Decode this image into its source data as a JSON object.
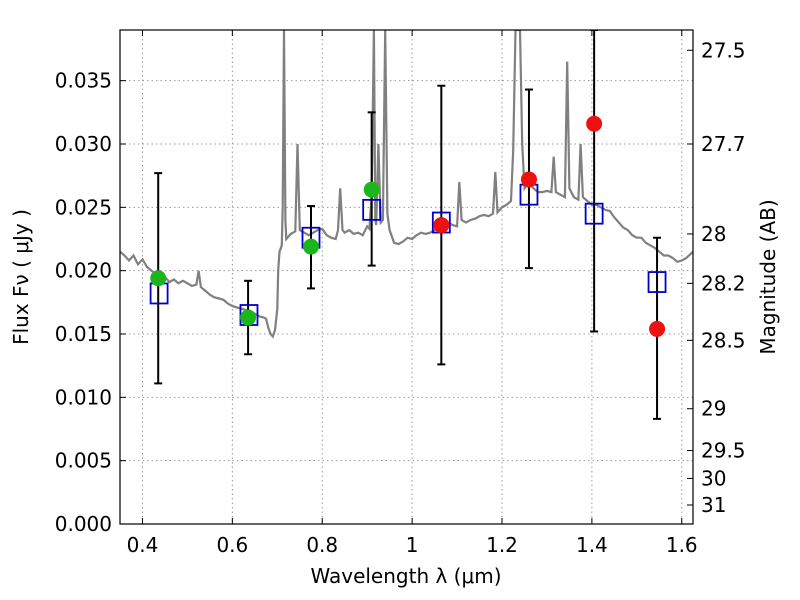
{
  "chart_data": {
    "type": "scatter",
    "xlabel": "Wavelength  λ (μm)",
    "ylabel": "Flux  Fν  ( μJy )",
    "ylabel_right": "Magnitude (AB)",
    "xlim": [
      0.35,
      1.625
    ],
    "ylim": [
      0.0,
      0.039
    ],
    "grid": true,
    "x_ticks": [
      0.4,
      0.6,
      0.8,
      1.0,
      1.2,
      1.4,
      1.6
    ],
    "x_tick_labels": [
      "0.4",
      "0.6",
      "0.8",
      "1",
      "1.2",
      "1.4",
      "1.6"
    ],
    "y_ticks": [
      0.0,
      0.005,
      0.01,
      0.015,
      0.02,
      0.025,
      0.03,
      0.035
    ],
    "y_tick_labels": [
      "0.000",
      "0.005",
      "0.010",
      "0.015",
      "0.020",
      "0.025",
      "0.030",
      "0.035"
    ],
    "right_ticks": [
      {
        "flux": 0.0374,
        "label": "27.5"
      },
      {
        "flux": 0.03,
        "label": "27.7"
      },
      {
        "flux": 0.0229,
        "label": "28"
      },
      {
        "flux": 0.019,
        "label": "28.2"
      },
      {
        "flux": 0.0145,
        "label": "28.5"
      },
      {
        "flux": 0.0091,
        "label": "29"
      },
      {
        "flux": 0.0058,
        "label": "29.5"
      },
      {
        "flux": 0.0036,
        "label": "30"
      },
      {
        "flux": 0.0015,
        "label": "31"
      }
    ],
    "colors": {
      "spectrum": "#808080",
      "green": "#1cb51c",
      "red": "#ee1111",
      "model_box": "#0000cc",
      "errorbar": "#000000",
      "grid": "#9a9a9a"
    },
    "observed_points": [
      {
        "x": 0.435,
        "y": 0.0194,
        "err_lo": 0.0111,
        "err_hi": 0.0277,
        "color": "green"
      },
      {
        "x": 0.635,
        "y": 0.0163,
        "err_lo": 0.0134,
        "err_hi": 0.0192,
        "color": "green"
      },
      {
        "x": 0.775,
        "y": 0.0219,
        "err_lo": 0.0186,
        "err_hi": 0.0251,
        "color": "green"
      },
      {
        "x": 0.91,
        "y": 0.0264,
        "err_lo": 0.0204,
        "err_hi": 0.0325,
        "color": "green"
      },
      {
        "x": 1.065,
        "y": 0.0236,
        "err_lo": 0.0126,
        "err_hi": 0.0346,
        "color": "red"
      },
      {
        "x": 1.26,
        "y": 0.0272,
        "err_lo": 0.0202,
        "err_hi": 0.0343,
        "color": "red"
      },
      {
        "x": 1.405,
        "y": 0.0316,
        "err_lo": 0.0152,
        "err_hi": 0.039,
        "color": "red"
      },
      {
        "x": 1.545,
        "y": 0.0154,
        "err_lo": 0.0083,
        "err_hi": 0.0226,
        "color": "red"
      }
    ],
    "model_points": [
      {
        "x": 0.437,
        "y": 0.0182
      },
      {
        "x": 0.637,
        "y": 0.0165
      },
      {
        "x": 0.775,
        "y": 0.0226
      },
      {
        "x": 0.91,
        "y": 0.0248
      },
      {
        "x": 1.065,
        "y": 0.0238
      },
      {
        "x": 1.26,
        "y": 0.026
      },
      {
        "x": 1.405,
        "y": 0.0245
      },
      {
        "x": 1.545,
        "y": 0.0191
      }
    ],
    "spectrum": [
      [
        0.35,
        0.0215
      ],
      [
        0.36,
        0.0212
      ],
      [
        0.37,
        0.0208
      ],
      [
        0.38,
        0.0212
      ],
      [
        0.39,
        0.0205
      ],
      [
        0.4,
        0.0209
      ],
      [
        0.41,
        0.0203
      ],
      [
        0.42,
        0.02
      ],
      [
        0.43,
        0.0197
      ],
      [
        0.44,
        0.0199
      ],
      [
        0.45,
        0.0195
      ],
      [
        0.46,
        0.0191
      ],
      [
        0.47,
        0.0193
      ],
      [
        0.48,
        0.019
      ],
      [
        0.49,
        0.0192
      ],
      [
        0.5,
        0.019
      ],
      [
        0.51,
        0.0188
      ],
      [
        0.52,
        0.0189
      ],
      [
        0.525,
        0.02
      ],
      [
        0.53,
        0.0187
      ],
      [
        0.54,
        0.0184
      ],
      [
        0.55,
        0.0181
      ],
      [
        0.56,
        0.0179
      ],
      [
        0.57,
        0.0178
      ],
      [
        0.58,
        0.0177
      ],
      [
        0.59,
        0.0174
      ],
      [
        0.6,
        0.0172
      ],
      [
        0.61,
        0.0171
      ],
      [
        0.62,
        0.017
      ],
      [
        0.63,
        0.0169
      ],
      [
        0.64,
        0.0168
      ],
      [
        0.65,
        0.0166
      ],
      [
        0.66,
        0.0164
      ],
      [
        0.67,
        0.0163
      ],
      [
        0.675,
        0.0162
      ],
      [
        0.68,
        0.0155
      ],
      [
        0.685,
        0.015
      ],
      [
        0.69,
        0.0148
      ],
      [
        0.695,
        0.0153
      ],
      [
        0.7,
        0.017
      ],
      [
        0.702,
        0.02
      ],
      [
        0.705,
        0.0215
      ],
      [
        0.71,
        0.022
      ],
      [
        0.712,
        0.025
      ],
      [
        0.715,
        0.039
      ],
      [
        0.718,
        0.024
      ],
      [
        0.72,
        0.0225
      ],
      [
        0.73,
        0.0229
      ],
      [
        0.74,
        0.0231
      ],
      [
        0.745,
        0.03
      ],
      [
        0.75,
        0.0232
      ],
      [
        0.76,
        0.023
      ],
      [
        0.77,
        0.0228
      ],
      [
        0.78,
        0.023
      ],
      [
        0.79,
        0.0232
      ],
      [
        0.8,
        0.0233
      ],
      [
        0.81,
        0.0228
      ],
      [
        0.82,
        0.0226
      ],
      [
        0.83,
        0.0225
      ],
      [
        0.835,
        0.0232
      ],
      [
        0.84,
        0.0265
      ],
      [
        0.845,
        0.0232
      ],
      [
        0.85,
        0.023
      ],
      [
        0.86,
        0.0232
      ],
      [
        0.87,
        0.0229
      ],
      [
        0.88,
        0.023
      ],
      [
        0.89,
        0.0228
      ],
      [
        0.9,
        0.0235
      ],
      [
        0.905,
        0.0233
      ],
      [
        0.91,
        0.026
      ],
      [
        0.915,
        0.039
      ],
      [
        0.918,
        0.024
      ],
      [
        0.92,
        0.0236
      ],
      [
        0.925,
        0.03
      ],
      [
        0.93,
        0.0238
      ],
      [
        0.935,
        0.024
      ],
      [
        0.94,
        0.039
      ],
      [
        0.945,
        0.0245
      ],
      [
        0.95,
        0.0232
      ],
      [
        0.96,
        0.0222
      ],
      [
        0.97,
        0.0221
      ],
      [
        0.98,
        0.0223
      ],
      [
        0.99,
        0.0226
      ],
      [
        1.0,
        0.0225
      ],
      [
        1.01,
        0.0228
      ],
      [
        1.02,
        0.023
      ],
      [
        1.03,
        0.0229
      ],
      [
        1.04,
        0.023
      ],
      [
        1.05,
        0.0232
      ],
      [
        1.06,
        0.0236
      ],
      [
        1.07,
        0.024
      ],
      [
        1.08,
        0.0238
      ],
      [
        1.09,
        0.0236
      ],
      [
        1.1,
        0.0235
      ],
      [
        1.105,
        0.027
      ],
      [
        1.11,
        0.024
      ],
      [
        1.12,
        0.0238
      ],
      [
        1.13,
        0.024
      ],
      [
        1.14,
        0.0241
      ],
      [
        1.15,
        0.0243
      ],
      [
        1.16,
        0.0244
      ],
      [
        1.17,
        0.0243
      ],
      [
        1.18,
        0.0245
      ],
      [
        1.185,
        0.0278
      ],
      [
        1.19,
        0.0246
      ],
      [
        1.2,
        0.025
      ],
      [
        1.21,
        0.0252
      ],
      [
        1.22,
        0.0255
      ],
      [
        1.225,
        0.0295
      ],
      [
        1.23,
        0.039
      ],
      [
        1.24,
        0.039
      ],
      [
        1.245,
        0.03
      ],
      [
        1.25,
        0.0265
      ],
      [
        1.26,
        0.027
      ],
      [
        1.27,
        0.0265
      ],
      [
        1.28,
        0.0262
      ],
      [
        1.29,
        0.0262
      ],
      [
        1.3,
        0.0263
      ],
      [
        1.31,
        0.0262
      ],
      [
        1.315,
        0.029
      ],
      [
        1.32,
        0.0262
      ],
      [
        1.33,
        0.026
      ],
      [
        1.34,
        0.0258
      ],
      [
        1.345,
        0.0365
      ],
      [
        1.35,
        0.0265
      ],
      [
        1.36,
        0.0258
      ],
      [
        1.37,
        0.0256
      ],
      [
        1.375,
        0.03
      ],
      [
        1.38,
        0.0258
      ],
      [
        1.39,
        0.0255
      ],
      [
        1.4,
        0.0252
      ],
      [
        1.41,
        0.0252
      ],
      [
        1.42,
        0.025
      ],
      [
        1.43,
        0.0248
      ],
      [
        1.44,
        0.0247
      ],
      [
        1.45,
        0.0242
      ],
      [
        1.46,
        0.0238
      ],
      [
        1.47,
        0.0234
      ],
      [
        1.48,
        0.0232
      ],
      [
        1.49,
        0.0228
      ],
      [
        1.5,
        0.0226
      ],
      [
        1.51,
        0.0226
      ],
      [
        1.52,
        0.0222
      ],
      [
        1.53,
        0.022
      ],
      [
        1.54,
        0.0218
      ],
      [
        1.55,
        0.0215
      ],
      [
        1.56,
        0.0212
      ],
      [
        1.57,
        0.0212
      ],
      [
        1.58,
        0.021
      ],
      [
        1.59,
        0.0207
      ],
      [
        1.6,
        0.0208
      ],
      [
        1.61,
        0.021
      ],
      [
        1.625,
        0.0215
      ]
    ]
  }
}
